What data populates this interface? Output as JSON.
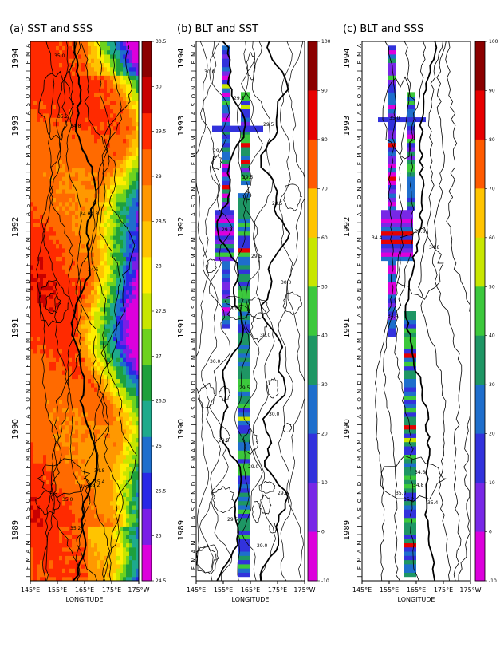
{
  "figure": {
    "xlabel": "LONGITUDE",
    "x_ticks": [
      "145°E",
      "155°E",
      "165°E",
      "175°E",
      "175°W"
    ],
    "year_labels": [
      "1994",
      "1993",
      "1992",
      "1991",
      "1990",
      "1989"
    ],
    "month_letters": [
      "J",
      "F",
      "M",
      "A",
      "M",
      "J",
      "J",
      "A",
      "S",
      "O",
      "N",
      "D"
    ],
    "top_months": [
      "J",
      "F",
      "M",
      "A"
    ]
  },
  "chart_data": [
    {
      "type": "heatmap",
      "panel": "a",
      "title": "(a)  SST and SSS",
      "xlabel": "LONGITUDE",
      "x_range": [
        "145°E",
        "175°W"
      ],
      "time_range": [
        "Jan 1989",
        "Apr 1994"
      ],
      "shading": "SST",
      "contours": "SSS",
      "colorbar": {
        "ticks": [
          "30.5",
          "30",
          "29.5",
          "29",
          "28.5",
          "28",
          "27.5",
          "27",
          "26.5",
          "26",
          "25.5",
          "25",
          "24.5"
        ],
        "colors": [
          "#8b0000",
          "#c80000",
          "#ff2a00",
          "#ff6a00",
          "#ff9800",
          "#ffc400",
          "#ffee00",
          "#c8e600",
          "#6dd21e",
          "#1ea03c",
          "#1eaa8c",
          "#1e6ecc",
          "#2828e6",
          "#7a1ee6",
          "#dc00dc"
        ]
      },
      "contour_labels": [
        "35.0",
        "35.2",
        "34.8",
        "34.6",
        "34.8",
        "34.6",
        "35.2",
        "34.8",
        "35.0",
        "35.4",
        "35.2",
        "34.8"
      ]
    },
    {
      "type": "heatmap",
      "panel": "b",
      "title": "(b)  BLT and SST",
      "xlabel": "LONGITUDE",
      "x_range": [
        "145°E",
        "175°W"
      ],
      "time_range": [
        "Jan 1989",
        "Apr 1994"
      ],
      "shading": "BLT",
      "contours": "SST",
      "colorbar": {
        "ticks": [
          "100",
          "90",
          "80",
          "70",
          "60",
          "50",
          "40",
          "30",
          "20",
          "10",
          "0",
          "-10"
        ],
        "colors": [
          "#8b0000",
          "#e60000",
          "#ff5a00",
          "#ffc400",
          "#c8e600",
          "#3cc83c",
          "#1e9664",
          "#1e6ecc",
          "#3232dc",
          "#7828e6",
          "#dc00dc"
        ]
      },
      "contour_labels": [
        "30.0",
        "29.5",
        "29.5",
        "29.5",
        "29.5",
        "29.5",
        "29.0",
        "29.5",
        "30.0",
        "30.0",
        "30.0",
        "30.0",
        "29.5",
        "30.0",
        "29.5",
        "29.0",
        "29.5",
        "29.5",
        "29.0"
      ]
    },
    {
      "type": "heatmap",
      "panel": "c",
      "title": "(c)  BLT and SSS",
      "xlabel": "LONGITUDE",
      "x_range": [
        "145°E",
        "175°W"
      ],
      "time_range": [
        "Jan 1989",
        "Apr 1994"
      ],
      "shading": "BLT",
      "contours": "SSS",
      "colorbar": {
        "ticks": [
          "100",
          "90",
          "80",
          "70",
          "60",
          "50",
          "40",
          "30",
          "20",
          "10",
          "0",
          "-10"
        ],
        "colors": [
          "#8b0000",
          "#e60000",
          "#ff5a00",
          "#ffc400",
          "#c8e600",
          "#3cc83c",
          "#1e9664",
          "#1e6ecc",
          "#3232dc",
          "#7828e6",
          "#dc00dc"
        ]
      },
      "contour_labels": [
        "35.0",
        "34.8",
        "34.4",
        "34.8",
        "34.4",
        "34.6",
        "35.0",
        "34.8",
        "35.2",
        "35.4"
      ]
    }
  ]
}
